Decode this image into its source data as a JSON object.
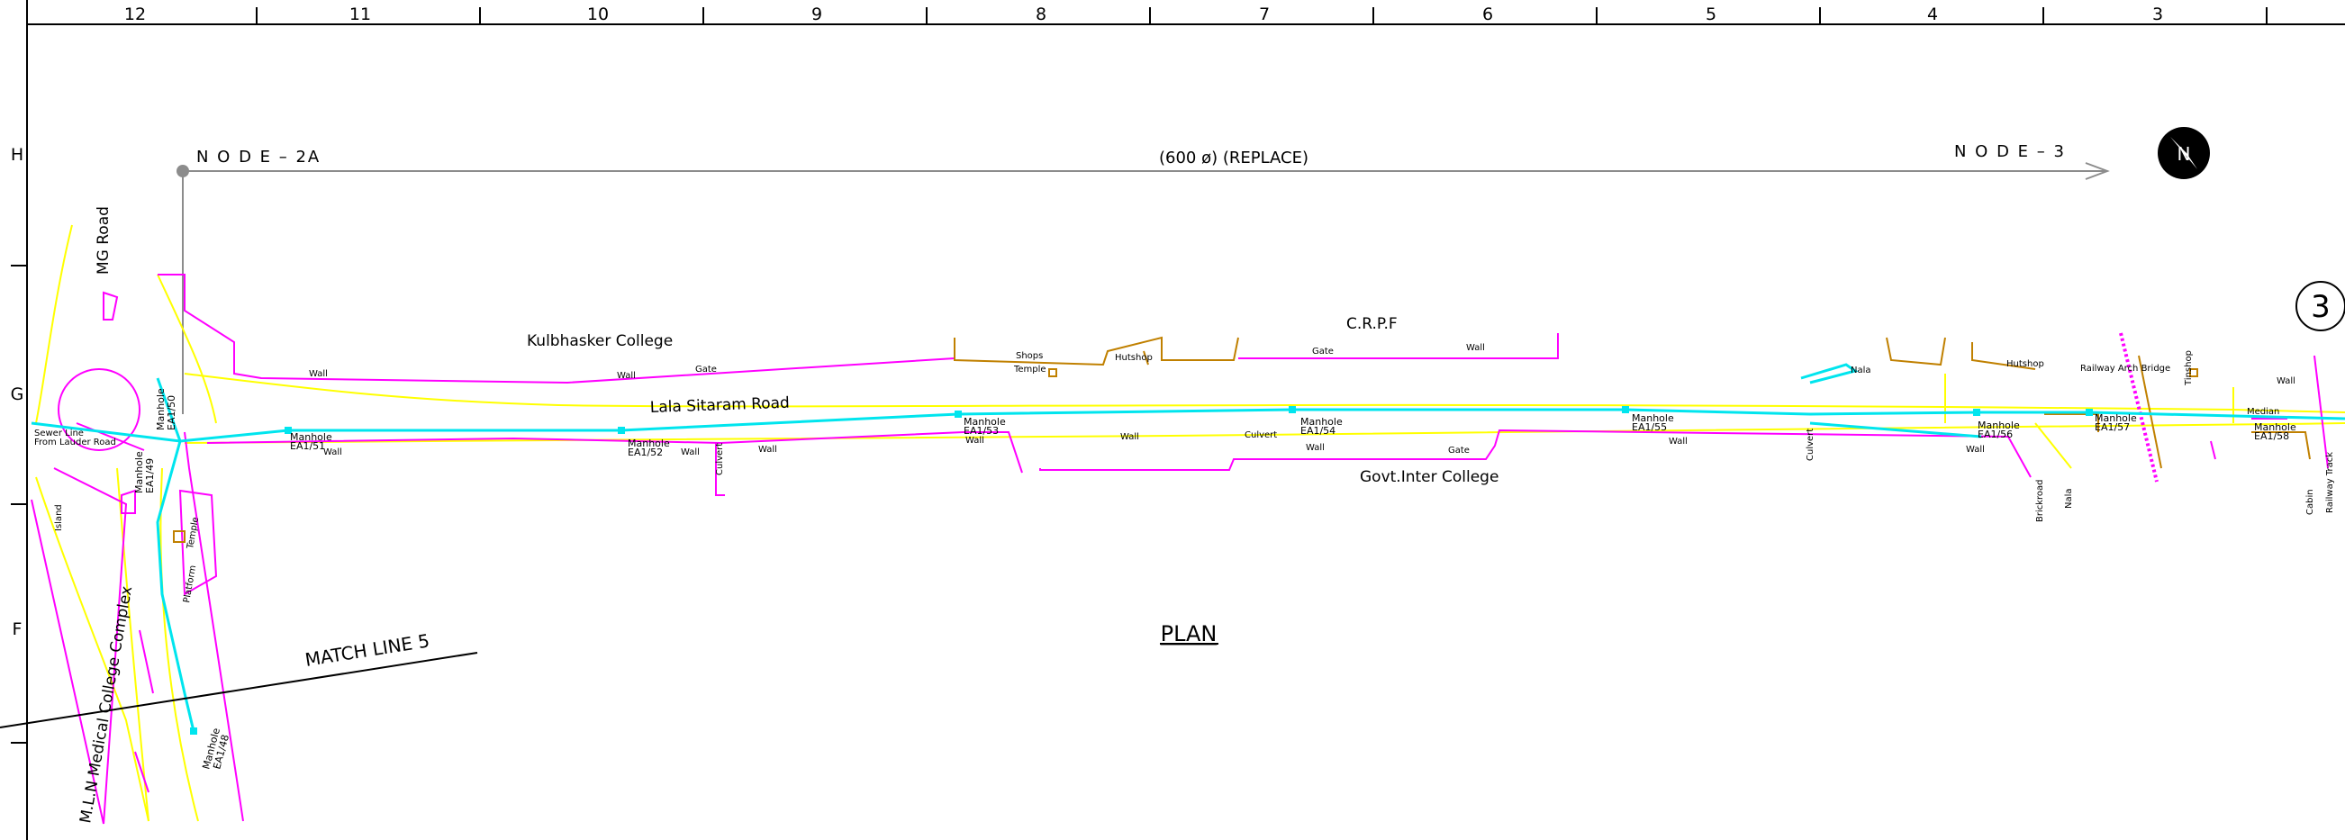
{
  "sheet": {
    "border_columns": [
      "12",
      "11",
      "10",
      "9",
      "8",
      "7",
      "6",
      "5",
      "4",
      "3"
    ],
    "border_rows": [
      "H",
      "G",
      "F"
    ],
    "view_title": "PLAN",
    "match_line": "MATCH LINE 5",
    "circle_number": "3"
  },
  "pipeline": {
    "start_node": "N O D E – 2A",
    "end_node": "N O D E – 3",
    "spec": "(600 ø)  (REPLACE)"
  },
  "roads": {
    "mg_road": "MG Road",
    "lala_sitaram": "Lala Sitaram Road"
  },
  "places": {
    "kulbhasker": "Kulbhasker College",
    "crpf": "C.R.P.F",
    "govt_inter": "Govt.Inter College",
    "mln": "M.L.N Medical College Complex"
  },
  "labels": {
    "wall": "Wall",
    "gate": "Gate",
    "shops": "Shops",
    "temple": "Temple",
    "hutshop": "Hutshop",
    "shop": "Shop",
    "nala": "Nala",
    "culvert": "Culvert",
    "island": "Island",
    "median": "Median",
    "platform": "Platform",
    "brickroad": "Brickroad",
    "railway_arch": "Railway Arch Bridge",
    "tinshop": "Tinshop",
    "cabin": "Cabin",
    "railway_track": "Railway Track",
    "sewer_line_1": "Sewer Line",
    "sewer_line_2": "From Lauder Road"
  },
  "manholes": [
    {
      "name": "Manhole",
      "id": "EA1/51"
    },
    {
      "name": "Manhole",
      "id": "EA1/52"
    },
    {
      "name": "Manhole",
      "id": "EA1/53"
    },
    {
      "name": "Manhole",
      "id": "EA1/54"
    },
    {
      "name": "Manhole",
      "id": "EA1/55"
    },
    {
      "name": "Manhole",
      "id": "EA1/56"
    },
    {
      "name": "Manhole",
      "id": "EA1/57"
    },
    {
      "name": "Manhole",
      "id": "EA1/58"
    },
    {
      "name": "Manhole",
      "id": "EA1/48"
    },
    {
      "name": "Manhole",
      "id": "EA1/49"
    },
    {
      "name": "Manhole",
      "id": "EA1/50"
    }
  ],
  "colors": {
    "wall": "#ff00ff",
    "road": "#ffff00",
    "sewer": "#00e5ee",
    "structure": "#c08000",
    "line": "#000000",
    "grey": "#8c8c8c"
  }
}
